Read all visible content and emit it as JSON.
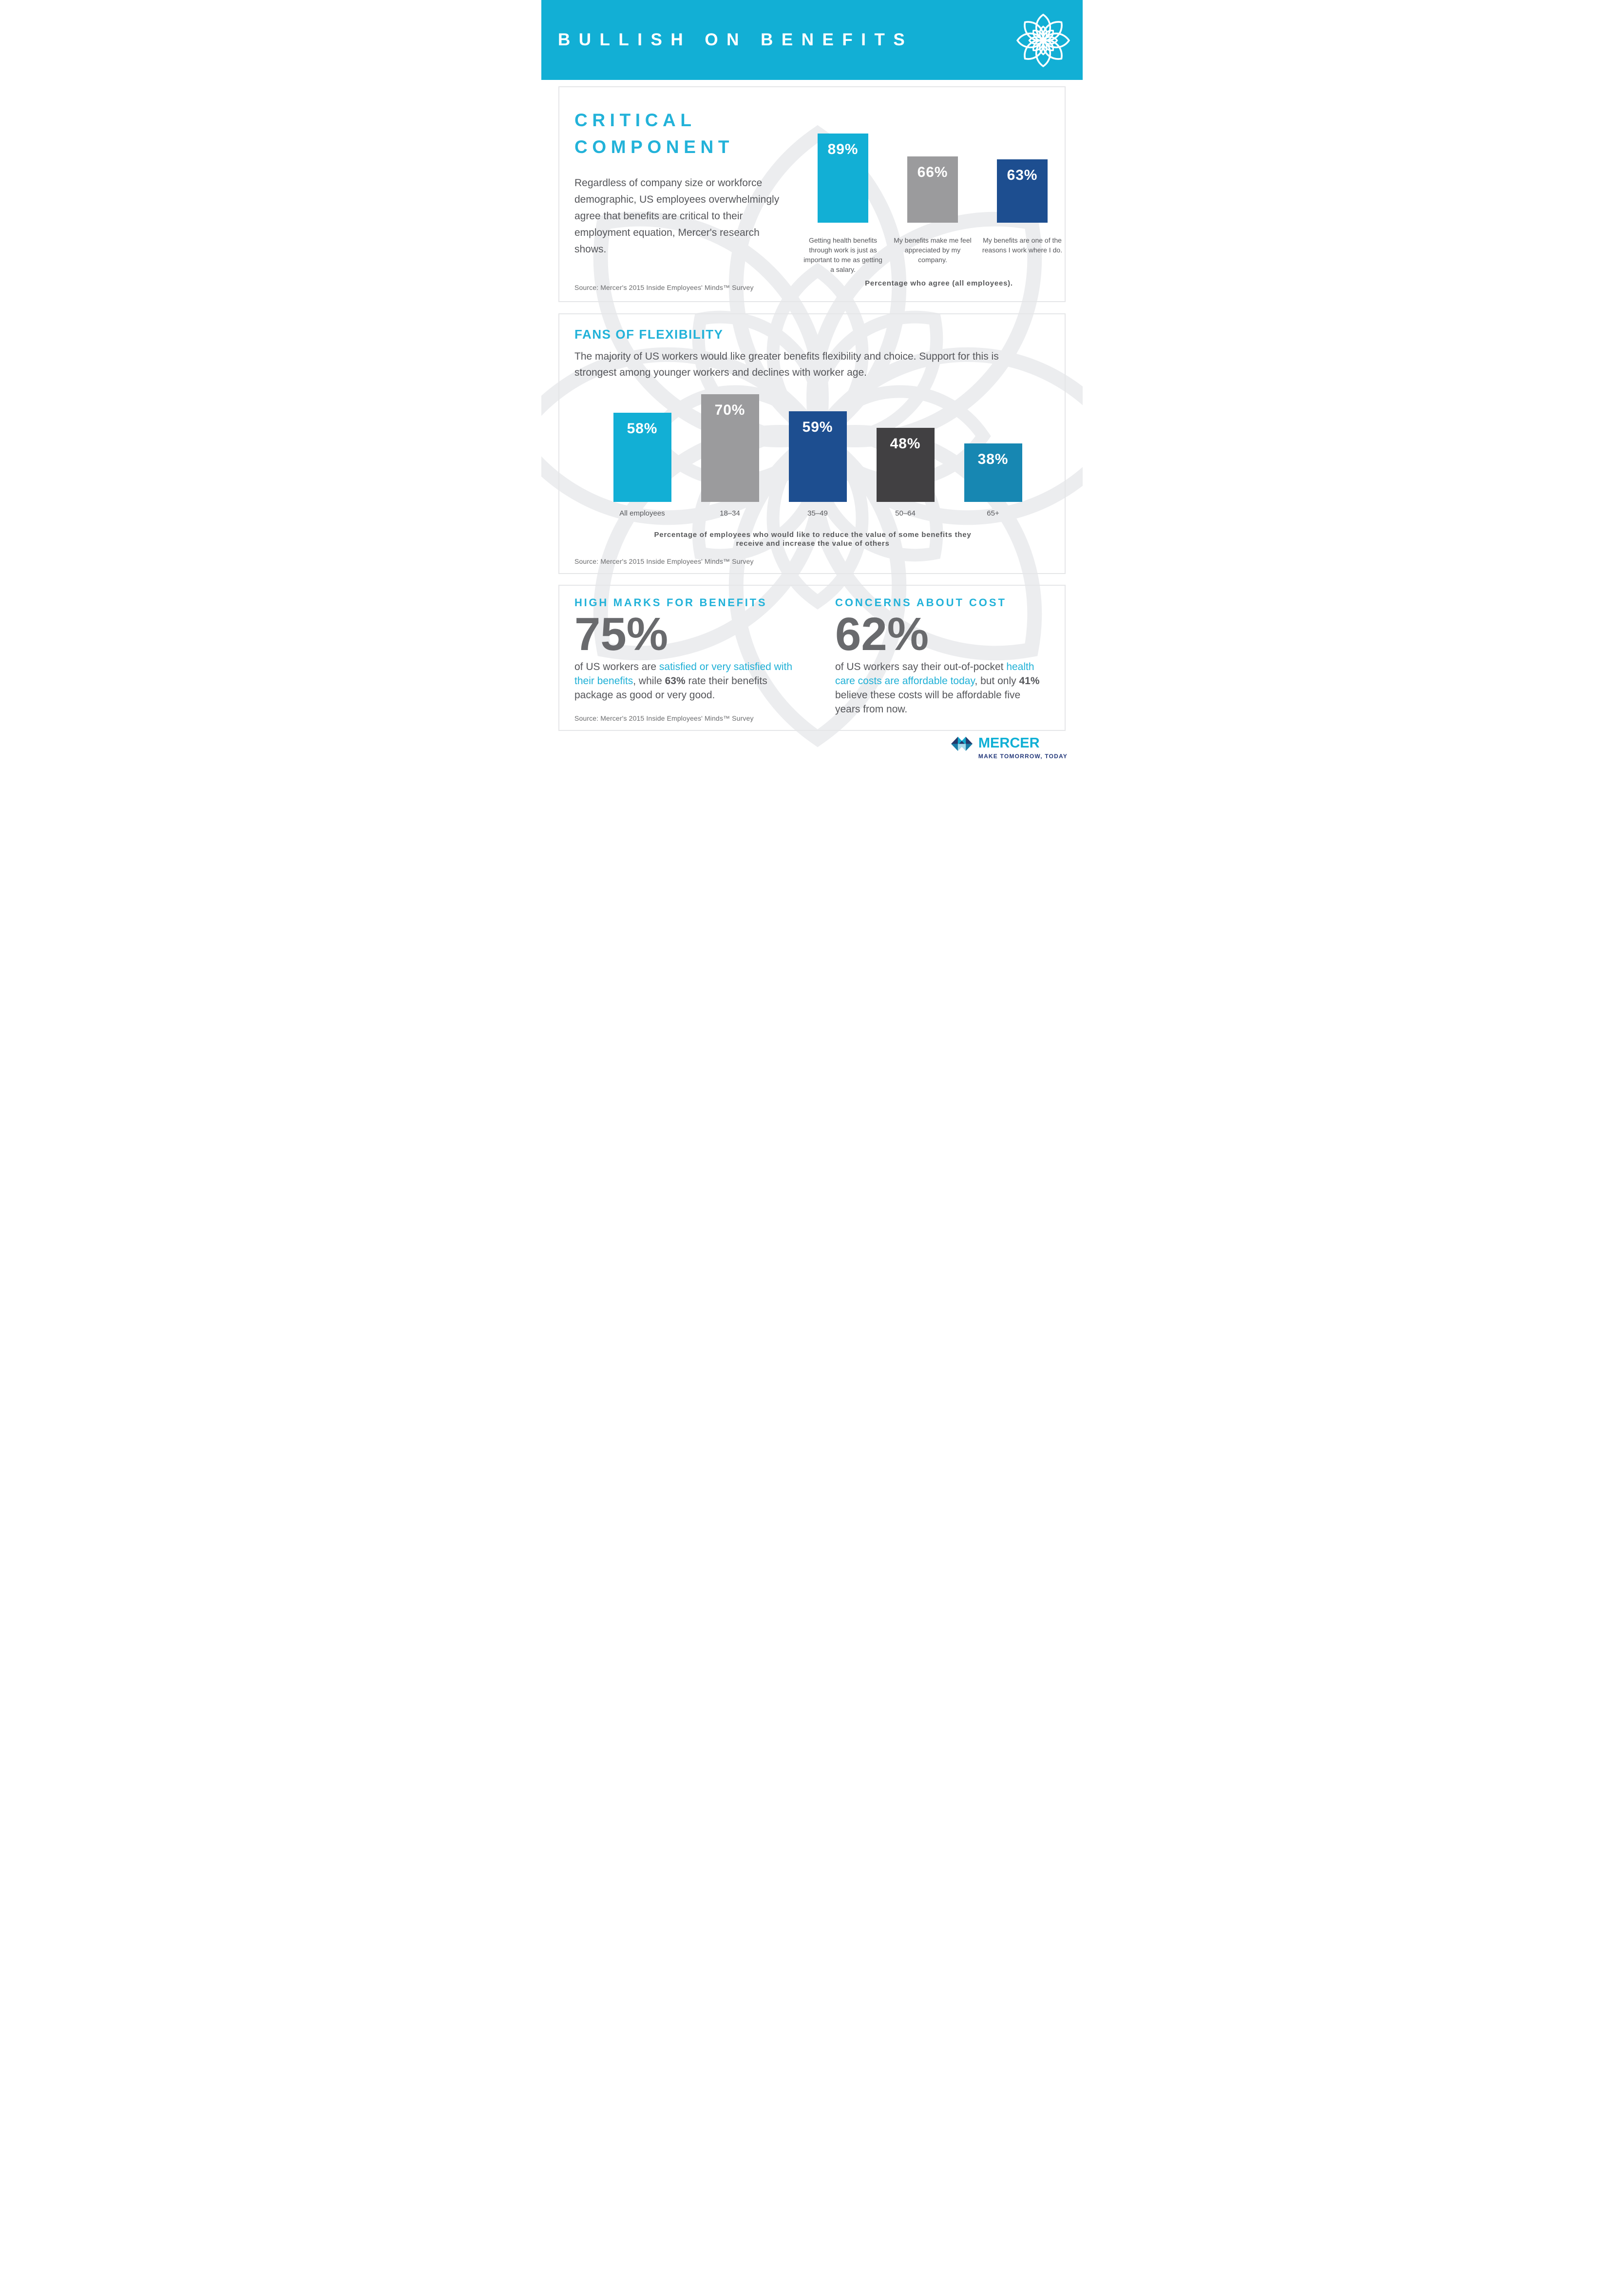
{
  "header": {
    "title": "BULLISH ON BENEFITS",
    "logo": "flower-icon"
  },
  "colors": {
    "header_bg": "#12AFD5",
    "accent_cyan": "#1FB0D6",
    "navy": "#1D4E90",
    "gray_bar": "#9B9B9D",
    "charcoal": "#414042",
    "teal": "#1787B2",
    "text_gray": "#55565A",
    "stat_gray": "#696A6D",
    "card_border": "#E5E6E8",
    "watermark": "#ECEDEF",
    "footer_navy": "#24397B",
    "brand_cyan": "#0FAFD5"
  },
  "section1": {
    "heading": "CRITICAL COMPONENT",
    "body": "Regardless of company size or workforce demographic, US employees overwhelmingly agree that benefits are critical to their employment equation, Mercer's research shows.",
    "source": "Source: Mercer's 2015 Inside Employees' Minds™ Survey"
  },
  "section2": {
    "heading": "FANS OF FLEXIBILITY",
    "body": "The majority of US workers would like greater benefits flexibility and choice. Support for this is strongest among younger workers and declines with worker age.",
    "source": "Source: Mercer's 2015 Inside Employees' Minds™ Survey"
  },
  "section3": {
    "left": {
      "heading": "HIGH MARKS FOR BENEFITS",
      "stat": "75%",
      "parts": [
        {
          "t": "of US workers are ",
          "c": "g"
        },
        {
          "t": "satisfied or very satisfied with their benefits",
          "c": "cyan"
        },
        {
          "t": ", while ",
          "c": "g"
        },
        {
          "t": "63%",
          "c": "b"
        },
        {
          "t": " rate their benefits package as good or very good.",
          "c": "g"
        }
      ],
      "source": "Source: Mercer's 2015 Inside Employees' Minds™ Survey"
    },
    "right": {
      "heading": "CONCERNS ABOUT COST",
      "stat": "62%",
      "parts": [
        {
          "t": "of US workers say their out-of-pocket ",
          "c": "g"
        },
        {
          "t": "health care costs are affordable today",
          "c": "cyan"
        },
        {
          "t": ", but only ",
          "c": "g"
        },
        {
          "t": "41%",
          "c": "b"
        },
        {
          "t": " believe these costs will be affordable five years from now.",
          "c": "g"
        }
      ]
    }
  },
  "chart_data": [
    {
      "type": "bar",
      "title": "Percentage who agree (all employees).",
      "categories": [
        "Getting health benefits through work is just as important to me as getting a salary.",
        "My benefits make me feel appreciated by my company.",
        "My benefits are one of the reasons I work where I do."
      ],
      "values": [
        89,
        66,
        63
      ],
      "labels": [
        "89%",
        "66%",
        "63%"
      ],
      "colors": [
        "#12AFD5",
        "#9B9B9D",
        "#1D4E90"
      ],
      "ylim": [
        0,
        100
      ],
      "unit": "%",
      "grid": false,
      "legend": "none"
    },
    {
      "type": "bar",
      "title": "Percentage of employees who would like to reduce the value of some benefits they receive and increase the value of others",
      "categories": [
        "All employees",
        "18–34",
        "35–49",
        "50–64",
        "65+"
      ],
      "values": [
        58,
        70,
        59,
        48,
        38
      ],
      "labels": [
        "58%",
        "70%",
        "59%",
        "48%",
        "38%"
      ],
      "colors": [
        "#12AFD5",
        "#9B9B9D",
        "#1D4E90",
        "#414042",
        "#1787B2"
      ],
      "ylim": [
        0,
        100
      ],
      "unit": "%",
      "grid": false,
      "legend": "none"
    }
  ],
  "footer": {
    "brand": "MERCER",
    "tagline": "MAKE TOMORROW, TODAY"
  }
}
